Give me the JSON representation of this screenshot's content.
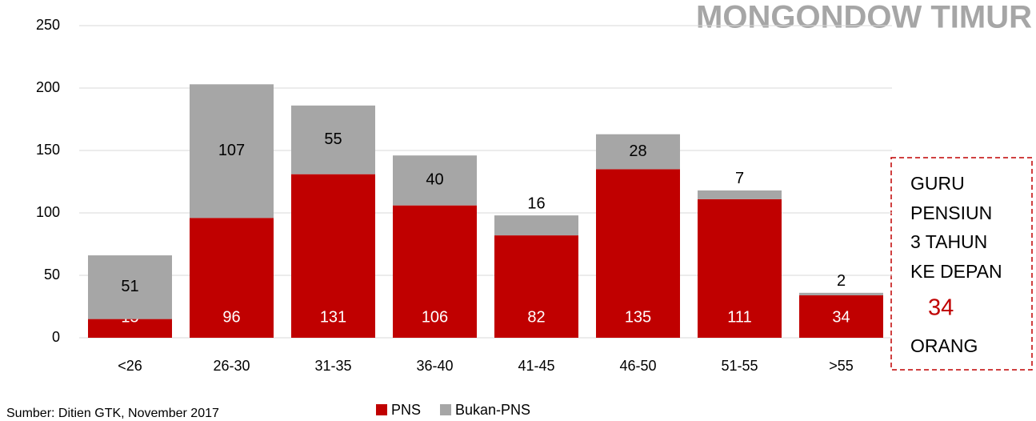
{
  "chart_data": {
    "type": "stacked_bar",
    "title": "MONGONDOW TIMUR",
    "categories": [
      "<26",
      "26-30",
      "31-35",
      "36-40",
      "41-45",
      "46-50",
      "51-55",
      ">55"
    ],
    "series": [
      {
        "name": "PNS",
        "color": "#c00000",
        "values": [
          15,
          96,
          131,
          106,
          82,
          135,
          111,
          34
        ]
      },
      {
        "name": "Bukan-PNS",
        "color": "#a6a6a6",
        "values": [
          51,
          107,
          55,
          40,
          16,
          28,
          7,
          2
        ]
      }
    ],
    "ylim": [
      0,
      250
    ],
    "yticks": [
      0,
      50,
      100,
      150,
      200,
      250
    ],
    "grid": true,
    "legend": "bottom",
    "annotation": {
      "lines": [
        "GURU",
        "PENSIUN",
        "3 TAHUN",
        "KE DEPAN"
      ],
      "count": "34",
      "unit": "ORANG"
    },
    "source": "Sumber: Ditien GTK, November 2017"
  }
}
